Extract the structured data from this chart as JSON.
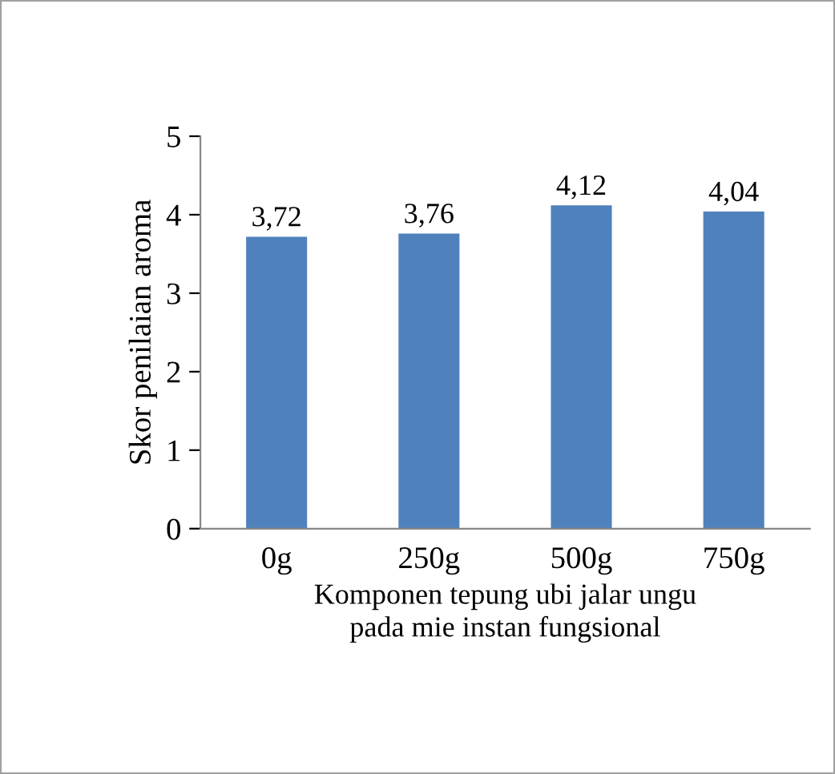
{
  "chart_data": {
    "type": "bar",
    "xlabel": "Komponen tepung ubi jalar ungu\npada mie instan fungsional",
    "ylabel": "Skor penilaian aroma",
    "categories": [
      "0g",
      "250g",
      "500g",
      "750g"
    ],
    "values": [
      3.72,
      3.76,
      4.12,
      4.04
    ],
    "value_labels": [
      "3,72",
      "3,76",
      "4,12",
      "4,04"
    ],
    "color": "#4f81bd",
    "ylim": [
      0,
      5
    ],
    "yticks": [
      0,
      1,
      2,
      3,
      4,
      5
    ],
    "grid": false,
    "legend": false
  }
}
